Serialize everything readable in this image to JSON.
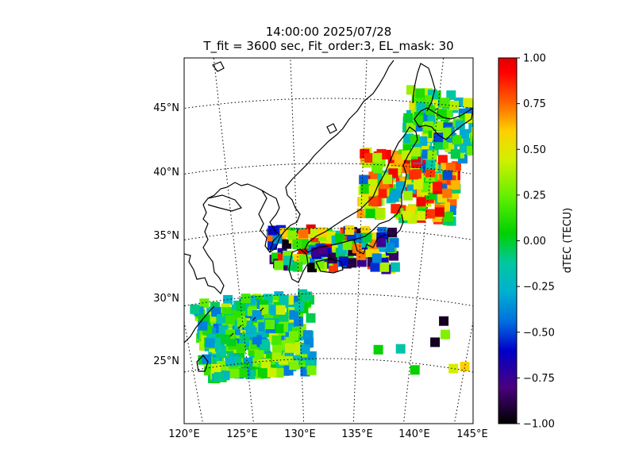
{
  "chart_data": {
    "type": "heatmap",
    "title": "14:00:00 2025/07/28",
    "subtitle": "T_fit = 3600 sec, Fit_order:3, EL_mask: 30",
    "map": {
      "projection": "lambert-conformal",
      "lon_range": [
        120,
        145
      ],
      "lat_range": [
        20,
        48
      ],
      "x_ticks": [
        {
          "value": 120,
          "label": "120°E"
        },
        {
          "value": 125,
          "label": "125°E"
        },
        {
          "value": 130,
          "label": "130°E"
        },
        {
          "value": 135,
          "label": "135°E"
        },
        {
          "value": 140,
          "label": "140°E"
        },
        {
          "value": 145,
          "label": "145°E"
        }
      ],
      "y_ticks": [
        {
          "value": 25,
          "label": "25°N"
        },
        {
          "value": 30,
          "label": "30°N"
        },
        {
          "value": 35,
          "label": "35°N"
        },
        {
          "value": 40,
          "label": "40°N"
        },
        {
          "value": 45,
          "label": "45°N"
        }
      ],
      "graticule": "dotted",
      "coastlines": true
    },
    "colorbar": {
      "label": "dTEC (TECU)",
      "range": [
        -1.0,
        1.0
      ],
      "ticks": [
        "1.00",
        "0.75",
        "0.50",
        "0.25",
        "0.00",
        "−0.25",
        "−0.50",
        "−0.75",
        "−1.00"
      ],
      "colormap": "nipy_spectral"
    },
    "regions": [
      {
        "lon": [
          128,
          138
        ],
        "lat": [
          32,
          35
        ],
        "dtec_range": [
          -1.0,
          1.0
        ],
        "dominant": "mixed"
      },
      {
        "lon": [
          135,
          142
        ],
        "lat": [
          36,
          41
        ],
        "dtec_range": [
          -0.5,
          1.0
        ],
        "dominant": "positive"
      },
      {
        "lon": [
          138,
          145
        ],
        "lat": [
          41,
          46
        ],
        "dtec_range": [
          -0.5,
          0.5
        ],
        "dominant": "mixed"
      },
      {
        "lon": [
          121,
          131
        ],
        "lat": [
          24,
          30
        ],
        "dtec_range": [
          -0.5,
          0.3
        ],
        "dominant": "near-zero"
      }
    ],
    "isolated_cells": [
      {
        "lon": 142.5,
        "lat": 28.5,
        "dtec": -0.95
      },
      {
        "lon": 142.0,
        "lat": 26.8,
        "dtec": -0.95
      },
      {
        "lon": 142.8,
        "lat": 27.5,
        "dtec": 0.3
      },
      {
        "lon": 144.0,
        "lat": 25.0,
        "dtec": 0.45
      },
      {
        "lon": 145.0,
        "lat": 25.3,
        "dtec": 0.6
      },
      {
        "lon": 140.5,
        "lat": 24.5,
        "dtec": 0.05
      },
      {
        "lon": 137.0,
        "lat": 25.8,
        "dtec": 0.05
      },
      {
        "lon": 139.0,
        "lat": 26.0,
        "dtec": -0.15
      }
    ]
  }
}
